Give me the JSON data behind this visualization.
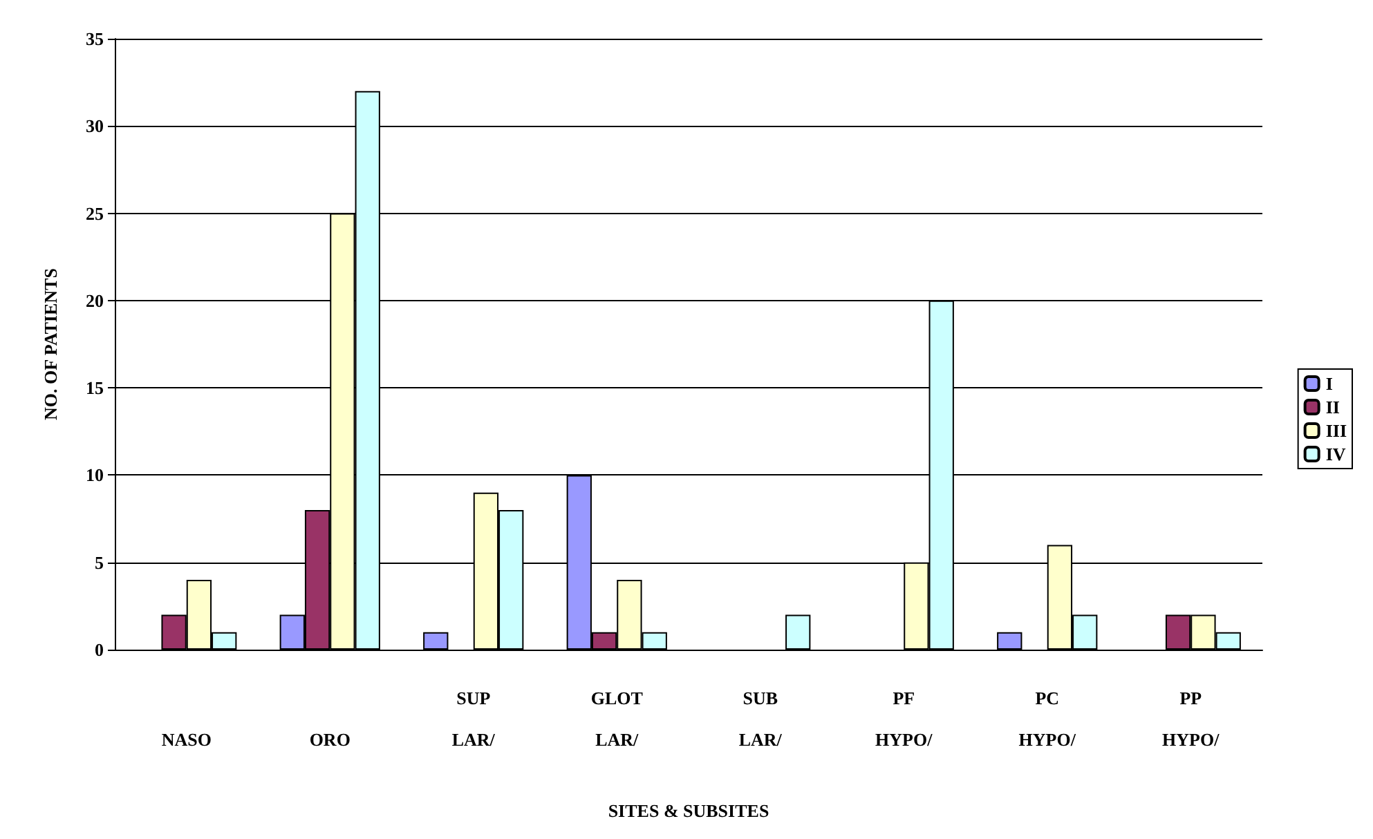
{
  "chart_data": {
    "type": "bar",
    "xlabel": "SITES & SUBSITES",
    "ylabel": "NO. OF PATIENTS",
    "categories": [
      "NASO",
      "ORO",
      "SUP LAR/",
      "GLOT LAR/",
      "SUB LAR/",
      "PF HYPO/",
      "PC HYPO/",
      "PP HYPO/"
    ],
    "series": [
      {
        "name": "I",
        "color": "#9999ff",
        "values": [
          null,
          2,
          1,
          10,
          null,
          null,
          1,
          null
        ]
      },
      {
        "name": "II",
        "color": "#993366",
        "values": [
          2,
          8,
          null,
          1,
          null,
          null,
          null,
          2
        ]
      },
      {
        "name": "III",
        "color": "#ffffcc",
        "values": [
          4,
          25,
          9,
          4,
          null,
          5,
          6,
          2
        ]
      },
      {
        "name": "IV",
        "color": "#ccffff",
        "values": [
          1,
          32,
          8,
          1,
          2,
          20,
          2,
          1
        ]
      }
    ],
    "ylim": [
      0,
      35
    ],
    "yticks": [
      0,
      5,
      10,
      15,
      20,
      25,
      30,
      35
    ],
    "grid": "y",
    "legend": "right"
  }
}
